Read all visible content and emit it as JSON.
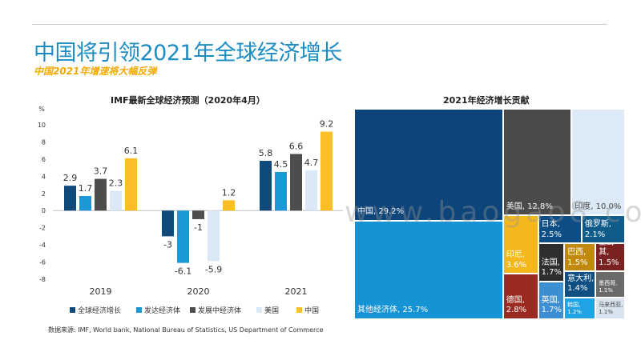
{
  "header": {
    "title": "中国将引领2021年全球经济增长",
    "subtitle": "中国2021年增速将大幅反弹"
  },
  "colors": {
    "title": "#1b8cc4",
    "subtitle": "#f2a900"
  },
  "chart_data": [
    {
      "type": "bar",
      "title": "IMF最新全球经济预测（2020年4月）",
      "ylabel": "%",
      "ylim": [
        -8,
        10
      ],
      "yticks": [
        10,
        8,
        6,
        4,
        2,
        0,
        -2,
        -4,
        -6,
        -8
      ],
      "categories": [
        "2019",
        "2020",
        "2021"
      ],
      "grid": false,
      "legend_position": "bottom",
      "series": [
        {
          "name": "全球经济增长",
          "color": "#0f4a7a",
          "values": [
            2.9,
            -3,
            5.8
          ]
        },
        {
          "name": "发达经济体",
          "color": "#1d98d6",
          "values": [
            1.7,
            -6.1,
            4.5
          ]
        },
        {
          "name": "发展中经济体",
          "color": "#4d4d4d",
          "values": [
            3.7,
            -1,
            6.6
          ]
        },
        {
          "name": "美国",
          "color": "#dbe8f5",
          "values": [
            2.3,
            -5.9,
            4.7
          ]
        },
        {
          "name": "中国",
          "color": "#fbbe26",
          "values": [
            6.1,
            1.2,
            9.2
          ]
        }
      ]
    },
    {
      "type": "treemap",
      "title": "2021年经济增长贡献",
      "cells": [
        {
          "name": "中国",
          "value": 29.2,
          "label": "中国, 29.2%",
          "color": "#0d4479"
        },
        {
          "name": "美国",
          "value": 12.8,
          "label": "美国, 12.8%",
          "color": "#4a4a4a"
        },
        {
          "name": "印度",
          "value": 10.0,
          "label": "印度, 10.0%",
          "color": "#dce9f6"
        },
        {
          "name": "其他经济体",
          "value": 25.7,
          "label": "其他经济体, 25.7%",
          "color": "#1593d5"
        },
        {
          "name": "俄罗斯",
          "value": 2.1,
          "label": "俄罗斯,\n2.1%",
          "color": "#0f5c8a"
        },
        {
          "name": "日本",
          "value": 2.5,
          "label": "日本, 2.5%",
          "color": "#0e4e86"
        },
        {
          "name": "印尼",
          "value": 3.6,
          "label": "印尼,\n3.6%",
          "color": "#f5b81c"
        },
        {
          "name": "法国",
          "value": 1.7,
          "label": "法国,\n1.7%",
          "color": "#2e2e2e"
        },
        {
          "name": "巴西",
          "value": 1.5,
          "label": "巴西,\n1.5%",
          "color": "#c18a0e"
        },
        {
          "name": "土耳其",
          "value": 1.5,
          "label": "土耳其,\n1.5%",
          "color": "#7a2222"
        },
        {
          "name": "德国",
          "value": 2.8,
          "label": "德国,\n2.8%",
          "color": "#9c2a20"
        },
        {
          "name": "意大利",
          "value": 1.4,
          "label": "意大利,\n1.4%",
          "color": "#0f4f82"
        },
        {
          "name": "墨西哥",
          "value": 1.1,
          "label": "墨西哥,\n1.1%",
          "color": "#6a6a6a"
        },
        {
          "name": "英国",
          "value": 1.7,
          "label": "英国,\n1.7%",
          "color": "#3d8ed0"
        },
        {
          "name": "韩国",
          "value": 1.2,
          "label": "韩国,\n1.2%",
          "color": "#1fa3e4"
        },
        {
          "name": "马来西亚",
          "value": 1.1,
          "label": "马来西亚,\n1.1%",
          "color": "#d7e4ef"
        }
      ]
    }
  ],
  "source": "数据来源: IMF, World bank, National Bureau of Statistics, US Department of Commerce",
  "watermark": "www.baogao8.com"
}
